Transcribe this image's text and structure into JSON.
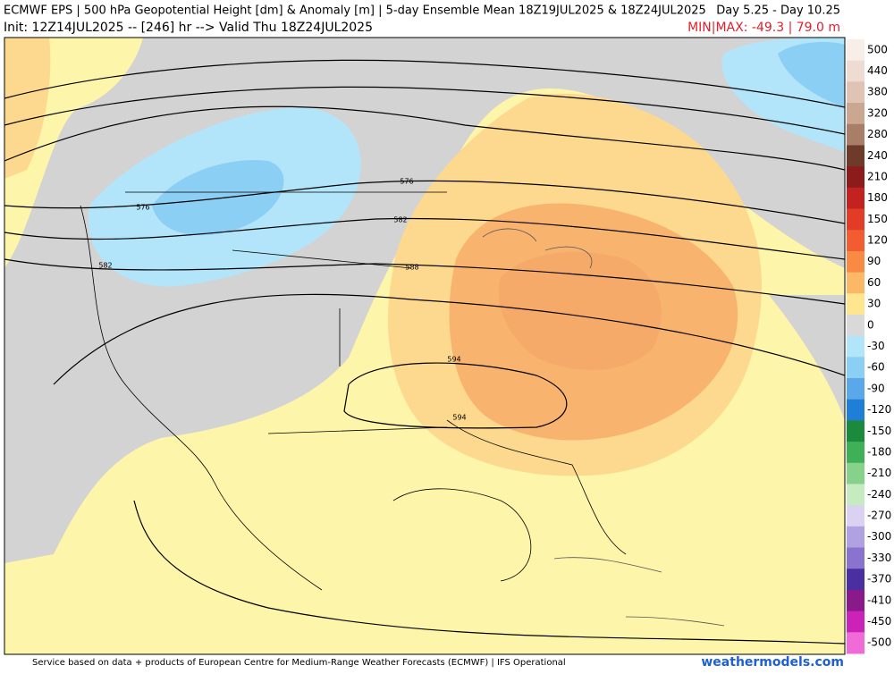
{
  "header": {
    "title": "ECMWF EPS | 500 hPa Geopotential Height [dm] & Anomaly [m] | 5-day Ensemble Mean 18Z19JUL2025 & 18Z24JUL2025",
    "days": "Day 5.25 - Day 10.25",
    "init": "Init: 12Z14JUL2025 -- [246] hr --> Valid Thu 18Z24JUL2025",
    "minmax": "MIN|MAX: -49.3 | 79.0 m"
  },
  "contour_labels": [
    "576",
    "576",
    "582",
    "582",
    "588",
    "594",
    "594"
  ],
  "colorbar": {
    "labels": [
      500,
      440,
      380,
      320,
      280,
      240,
      210,
      180,
      150,
      120,
      90,
      60,
      30,
      0,
      -30,
      -60,
      -90,
      -120,
      -150,
      -180,
      -210,
      -240,
      -270,
      -300,
      -330,
      -370,
      -410,
      -450,
      -500
    ],
    "colors": [
      "#f8eee8",
      "#eedcd2",
      "#dfc4b5",
      "#cba690",
      "#a87e68",
      "#6e3b2b",
      "#8c1c1c",
      "#c22220",
      "#e23c28",
      "#f25c30",
      "#f88a44",
      "#fbb866",
      "#fde68e",
      "#d9d9d9",
      "#b3e5fa",
      "#8ccff5",
      "#5aa8ea",
      "#1f7fd6",
      "#1c8a3c",
      "#3fb057",
      "#86d28a",
      "#c6ebc0",
      "#d9d2f0",
      "#b0a2e2",
      "#8a72cf",
      "#4a2fa0",
      "#8a1a8a",
      "#cc22b8",
      "#f06ad8"
    ]
  },
  "footer": {
    "credit": "Service based on data + products of European Centre for Medium-Range Weather Forecasts (ECMWF) | IFS Operational",
    "brand": "weathermodels.com"
  }
}
